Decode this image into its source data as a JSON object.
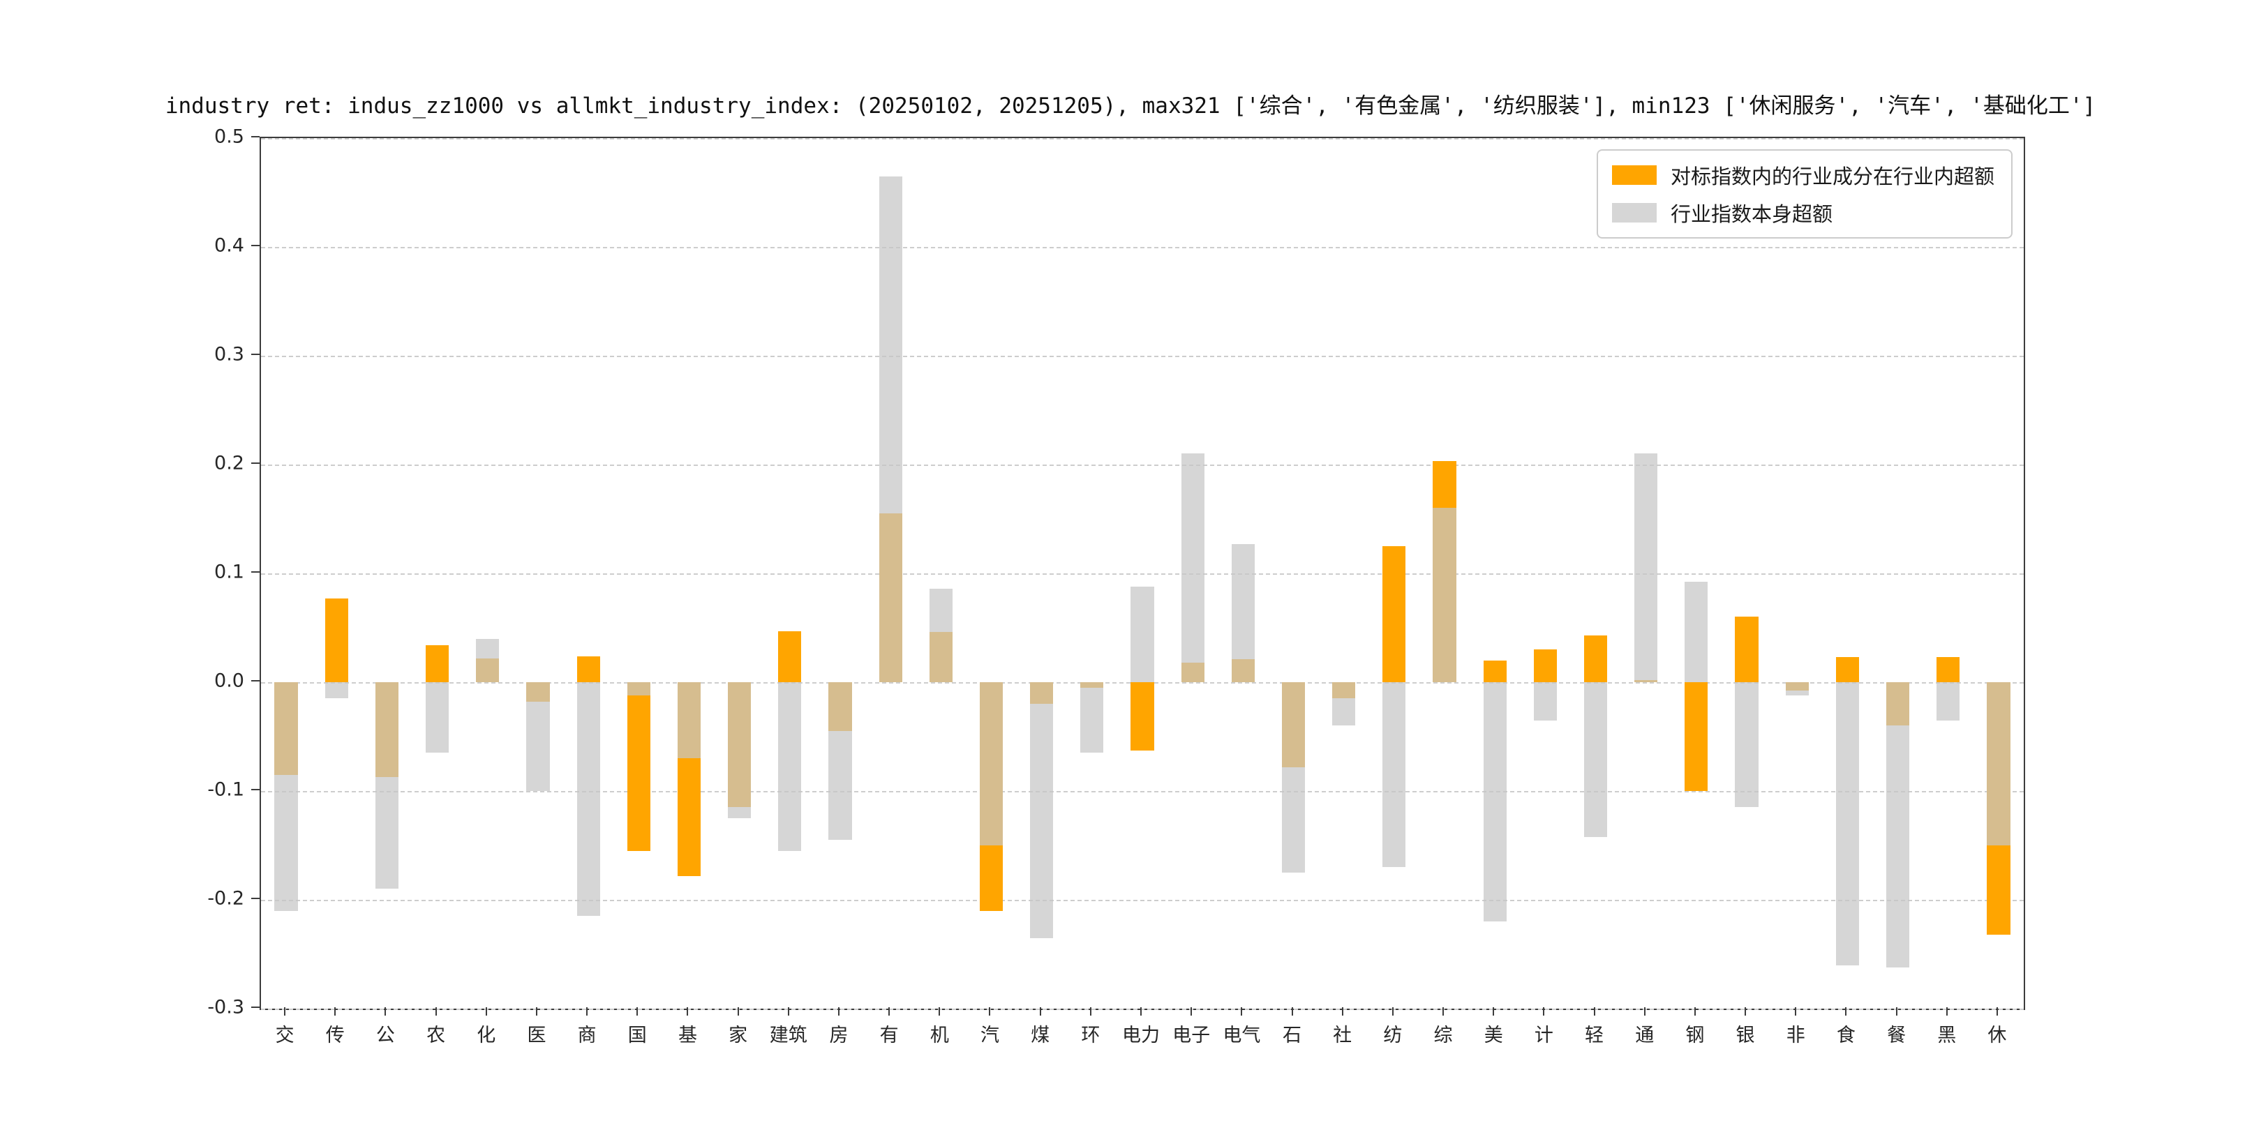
{
  "title": "industry ret: indus_zz1000 vs allmkt_industry_index: (20250102, 20251205), max321 ['综合', '有色金属', '纺织服装'], min123 ['休闲服务', '汽车', '基础化工']",
  "colors": {
    "orange_series": "#FFA500",
    "gray_series": "#D6D6D6",
    "grid": "#cdcdcd",
    "spine": "#3c3c3c"
  },
  "chart_data": {
    "type": "bar",
    "title": "industry ret: indus_zz1000 vs allmkt_industry_index: (20250102, 20251205), max321 ['综合', '有色金属', '纺织服装'], min123 ['休闲服务', '汽车', '基础化工']",
    "categories": [
      "交",
      "传",
      "公",
      "农",
      "化",
      "医",
      "商",
      "国",
      "基",
      "家",
      "建筑",
      "房",
      "有",
      "机",
      "汽",
      "煤",
      "环",
      "电力",
      "电子",
      "电气",
      "石",
      "社",
      "纺",
      "综",
      "美",
      "计",
      "轻",
      "通",
      "钢",
      "银",
      "非",
      "食",
      "餐",
      "黑",
      "休"
    ],
    "series": [
      {
        "name": "对标指数内的行业成分在行业内超额",
        "color": "#FFA500",
        "values": [
          -0.085,
          0.077,
          -0.087,
          0.034,
          0.022,
          -0.018,
          0.024,
          -0.155,
          -0.178,
          -0.115,
          0.047,
          -0.045,
          0.155,
          0.046,
          -0.21,
          -0.02,
          -0.005,
          -0.063,
          0.018,
          0.021,
          -0.078,
          -0.015,
          0.125,
          0.203,
          0.02,
          0.03,
          0.043,
          0.002,
          -0.1,
          0.06,
          -0.008,
          0.023,
          -0.04,
          0.023,
          -0.232
        ]
      },
      {
        "name": "行业指数本身超额",
        "color": "#D6D6D6",
        "values": [
          -0.21,
          -0.015,
          -0.19,
          -0.065,
          0.04,
          -0.1,
          -0.215,
          -0.012,
          -0.07,
          -0.125,
          -0.155,
          -0.145,
          0.465,
          0.086,
          -0.15,
          -0.235,
          -0.065,
          0.088,
          0.21,
          0.127,
          -0.175,
          -0.04,
          -0.17,
          0.16,
          -0.22,
          -0.035,
          -0.142,
          0.21,
          0.092,
          -0.115,
          -0.012,
          -0.26,
          -0.262,
          -0.035,
          -0.15
        ]
      }
    ],
    "xlabel": "",
    "ylabel": "",
    "ylim": [
      -0.3,
      0.5
    ],
    "yticks": [
      0.5,
      0.4,
      0.3,
      0.2,
      0.1,
      0.0,
      -0.1,
      -0.2,
      -0.3
    ],
    "grid": "horizontal-dashed",
    "legend_position": "upper right"
  }
}
